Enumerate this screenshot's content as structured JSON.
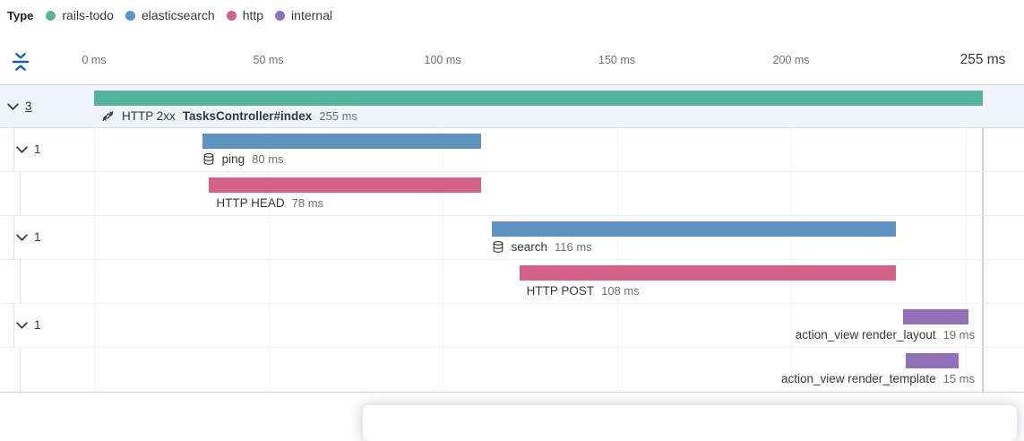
{
  "legend": {
    "title": "Type",
    "items": [
      {
        "label": "rails-todo",
        "color": "#54B399"
      },
      {
        "label": "elasticsearch",
        "color": "#6092C0"
      },
      {
        "label": "http",
        "color": "#D36086"
      },
      {
        "label": "internal",
        "color": "#9170B8"
      }
    ]
  },
  "timeline": {
    "axis": {
      "ticks": [
        {
          "ms": 0,
          "label": "0 ms"
        },
        {
          "ms": 50,
          "label": "50 ms"
        },
        {
          "ms": 100,
          "label": "100 ms"
        },
        {
          "ms": 150,
          "label": "150 ms"
        },
        {
          "ms": 200,
          "label": "200 ms"
        }
      ],
      "grid_ms": [
        0,
        50,
        100,
        150,
        200,
        250
      ],
      "end_ms": 255,
      "end_label": "255 ms"
    },
    "rows": [
      {
        "depth": 0,
        "toggle": "3",
        "toggle_link": true,
        "selected": true,
        "color": "#54B399",
        "start_ms": 0,
        "duration_ms": 255,
        "icon": "merge",
        "prefix": "HTTP 2xx",
        "name": "TasksController#index",
        "bold_name": true,
        "duration": "255 ms",
        "label_side": "left",
        "label_offset": 8
      },
      {
        "depth": 1,
        "toggle": "1",
        "color": "#6092C0",
        "start_ms": 31,
        "duration_ms": 80,
        "icon": "database",
        "name": "ping",
        "duration": "80 ms",
        "label_side": "left",
        "label_offset": 0
      },
      {
        "depth": 2,
        "color": "#D36086",
        "start_ms": 33,
        "duration_ms": 78,
        "name": "HTTP HEAD",
        "duration": "78 ms",
        "label_side": "left",
        "label_offset": 8
      },
      {
        "depth": 1,
        "toggle": "1",
        "color": "#6092C0",
        "start_ms": 114,
        "duration_ms": 116,
        "icon": "database",
        "name": "search",
        "duration": "116 ms",
        "label_side": "left",
        "label_offset": 0
      },
      {
        "depth": 2,
        "color": "#D36086",
        "start_ms": 122,
        "duration_ms": 108,
        "name": "HTTP POST",
        "duration": "108 ms",
        "label_side": "left",
        "label_offset": 8
      },
      {
        "depth": 1,
        "toggle": "1",
        "color": "#9170B8",
        "start_ms": 232,
        "duration_ms": 19,
        "name": "action_view render_layout",
        "duration": "19 ms",
        "label_side": "right"
      },
      {
        "depth": 2,
        "color": "#9170B8",
        "start_ms": 233,
        "duration_ms": 15,
        "name": "action_view render_template",
        "duration": "15 ms",
        "label_side": "right"
      }
    ]
  },
  "chart_data": {
    "type": "waterfall",
    "unit": "ms",
    "xlim": [
      0,
      255
    ],
    "x_ticks": [
      0,
      50,
      100,
      150,
      200,
      255
    ],
    "legend_position": "top",
    "items": [
      {
        "name": "HTTP 2xx TasksController#index",
        "series": "rails-todo",
        "start": 0,
        "duration": 255,
        "children": 3
      },
      {
        "name": "ping",
        "series": "elasticsearch",
        "start": 31,
        "duration": 80,
        "children": 1
      },
      {
        "name": "HTTP HEAD",
        "series": "http",
        "start": 33,
        "duration": 78
      },
      {
        "name": "search",
        "series": "elasticsearch",
        "start": 114,
        "duration": 116,
        "children": 1
      },
      {
        "name": "HTTP POST",
        "series": "http",
        "start": 122,
        "duration": 108
      },
      {
        "name": "action_view render_layout",
        "series": "internal",
        "start": 232,
        "duration": 19,
        "children": 1
      },
      {
        "name": "action_view render_template",
        "series": "internal",
        "start": 233,
        "duration": 15
      }
    ]
  }
}
